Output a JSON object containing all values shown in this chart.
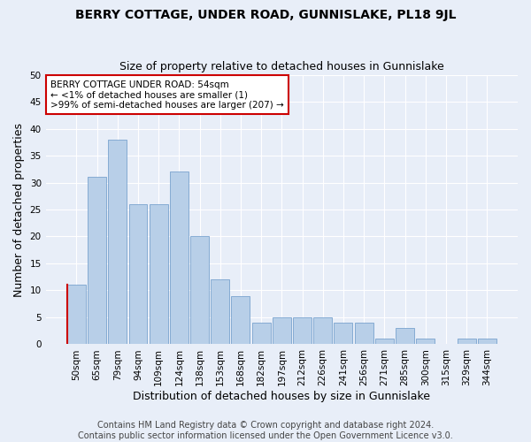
{
  "title": "BERRY COTTAGE, UNDER ROAD, GUNNISLAKE, PL18 9JL",
  "subtitle": "Size of property relative to detached houses in Gunnislake",
  "xlabel": "Distribution of detached houses by size in Gunnislake",
  "ylabel": "Number of detached properties",
  "categories": [
    "50sqm",
    "65sqm",
    "79sqm",
    "94sqm",
    "109sqm",
    "124sqm",
    "138sqm",
    "153sqm",
    "168sqm",
    "182sqm",
    "197sqm",
    "212sqm",
    "226sqm",
    "241sqm",
    "256sqm",
    "271sqm",
    "285sqm",
    "300sqm",
    "315sqm",
    "329sqm",
    "344sqm"
  ],
  "values": [
    11,
    31,
    38,
    26,
    26,
    32,
    20,
    12,
    9,
    4,
    5,
    5,
    5,
    4,
    4,
    1,
    3,
    1,
    0,
    1,
    1
  ],
  "bar_color": "#b8cfe8",
  "bar_edge_color": "#6897c8",
  "highlight_bar_index": 0,
  "highlight_edge_color": "#cc0000",
  "ylim": [
    0,
    50
  ],
  "yticks": [
    0,
    5,
    10,
    15,
    20,
    25,
    30,
    35,
    40,
    45,
    50
  ],
  "annotation_title": "BERRY COTTAGE UNDER ROAD: 54sqm",
  "annotation_line1": "← <1% of detached houses are smaller (1)",
  "annotation_line2": ">99% of semi-detached houses are larger (207) →",
  "annotation_box_color": "#ffffff",
  "annotation_border_color": "#cc0000",
  "footer1": "Contains HM Land Registry data © Crown copyright and database right 2024.",
  "footer2": "Contains public sector information licensed under the Open Government Licence v3.0.",
  "bg_color": "#e8eef8",
  "plot_bg_color": "#e8eef8",
  "grid_color": "#ffffff",
  "title_fontsize": 10,
  "subtitle_fontsize": 9,
  "axis_label_fontsize": 9,
  "tick_fontsize": 7.5,
  "footer_fontsize": 7
}
